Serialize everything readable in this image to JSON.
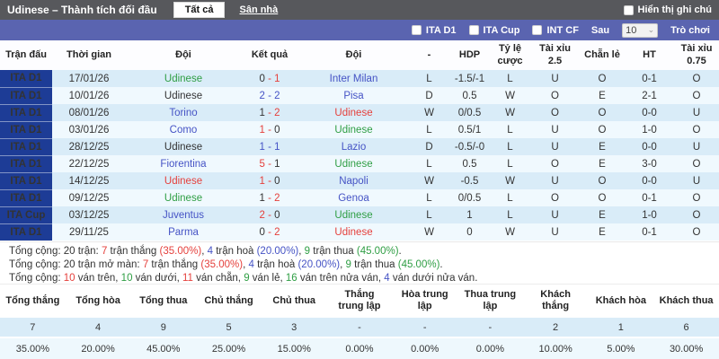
{
  "colors": {
    "navy_badge": "#1d3c96",
    "red": "#e5403c",
    "green": "#2f9e44",
    "blue": "#4553c5",
    "titlebar_gray": "#57585c",
    "filterbar_indigo": "#5a64b0",
    "stripe_odd": "#d9ecf8",
    "stripe_even": "#f0f9fe"
  },
  "title_bar": {
    "title": "Udinese – Thành tích đối đầu",
    "tab_all": "Tất cả",
    "tab_home": "Sân nhà",
    "notes_label": "Hiển thị ghi chú"
  },
  "filter_bar": {
    "leagues": [
      {
        "label": "ITA D1"
      },
      {
        "label": "ITA Cup"
      },
      {
        "label": "INT CF"
      }
    ],
    "after_label": "Sau",
    "count_value": "10",
    "chevron_icon": "⌄",
    "games_label": "Trò chơi"
  },
  "match_table": {
    "headers": [
      "Trận đấu",
      "Thời gian",
      "Đội",
      "Kết quả",
      "Đội",
      "-",
      "HDP",
      "Tỷ lệ cược",
      "Tài xỉu 2.5",
      "Chẵn lẻ",
      "HT",
      "Tài xỉu 0.75"
    ],
    "rows": [
      {
        "league": "ITA D1",
        "date": "17/01/26",
        "home": "Udinese",
        "home_color": "green",
        "score_home": "0",
        "score_home_color": "dark",
        "score_away": "1",
        "score_away_color": "red",
        "score_dash_color": "red",
        "away": "Inter Milan",
        "away_color": "blue",
        "result": "L",
        "result_color": "green",
        "hdp": "-1.5/-1",
        "odds": "L",
        "odds_color": "green",
        "ou25": "U",
        "ou25_color": "green",
        "evenodd": "O",
        "evenodd_color": "green",
        "ht": "0-1",
        "ou075": "O",
        "ou075_color": "green"
      },
      {
        "league": "ITA D1",
        "date": "10/01/26",
        "home": "Udinese",
        "home_color": "dark",
        "score_home": "2",
        "score_home_color": "blue",
        "score_away": "2",
        "score_away_color": "blue",
        "score_dash_color": "blue",
        "away": "Pisa",
        "away_color": "blue",
        "result": "D",
        "result_color": "blue",
        "hdp": "0.5",
        "odds": "W",
        "odds_color": "red",
        "ou25": "O",
        "ou25_color": "red",
        "evenodd": "E",
        "evenodd_color": "red",
        "ht": "2-1",
        "ou075": "O",
        "ou075_color": "green"
      },
      {
        "league": "ITA D1",
        "date": "08/01/26",
        "home": "Torino",
        "home_color": "blue",
        "score_home": "1",
        "score_home_color": "dark",
        "score_away": "2",
        "score_away_color": "red",
        "score_dash_color": "red",
        "away": "Udinese",
        "away_color": "red",
        "result": "W",
        "result_color": "red",
        "hdp": "0/0.5",
        "odds": "W",
        "odds_color": "red",
        "ou25": "O",
        "ou25_color": "red",
        "evenodd": "O",
        "evenodd_color": "green",
        "ht": "0-0",
        "ou075": "U",
        "ou075_color": "blue"
      },
      {
        "league": "ITA D1",
        "date": "03/01/26",
        "home": "Como",
        "home_color": "blue",
        "score_home": "1",
        "score_home_color": "red",
        "score_away": "0",
        "score_away_color": "dark",
        "score_dash_color": "red",
        "away": "Udinese",
        "away_color": "green",
        "result": "L",
        "result_color": "green",
        "hdp": "0.5/1",
        "odds": "L",
        "odds_color": "green",
        "ou25": "U",
        "ou25_color": "green",
        "evenodd": "O",
        "evenodd_color": "green",
        "ht": "1-0",
        "ou075": "O",
        "ou075_color": "green"
      },
      {
        "league": "ITA D1",
        "date": "28/12/25",
        "home": "Udinese",
        "home_color": "dark",
        "score_home": "1",
        "score_home_color": "blue",
        "score_away": "1",
        "score_away_color": "blue",
        "score_dash_color": "blue",
        "away": "Lazio",
        "away_color": "blue",
        "result": "D",
        "result_color": "blue",
        "hdp": "-0.5/-0",
        "odds": "L",
        "odds_color": "green",
        "ou25": "U",
        "ou25_color": "green",
        "evenodd": "E",
        "evenodd_color": "red",
        "ht": "0-0",
        "ou075": "U",
        "ou075_color": "blue"
      },
      {
        "league": "ITA D1",
        "date": "22/12/25",
        "home": "Fiorentina",
        "home_color": "blue",
        "score_home": "5",
        "score_home_color": "red",
        "score_away": "1",
        "score_away_color": "dark",
        "score_dash_color": "red",
        "away": "Udinese",
        "away_color": "green",
        "result": "L",
        "result_color": "green",
        "hdp": "0.5",
        "odds": "L",
        "odds_color": "green",
        "ou25": "O",
        "ou25_color": "red",
        "evenodd": "E",
        "evenodd_color": "red",
        "ht": "3-0",
        "ou075": "O",
        "ou075_color": "green"
      },
      {
        "league": "ITA D1",
        "date": "14/12/25",
        "home": "Udinese",
        "home_color": "red",
        "score_home": "1",
        "score_home_color": "red",
        "score_away": "0",
        "score_away_color": "dark",
        "score_dash_color": "red",
        "away": "Napoli",
        "away_color": "blue",
        "result": "W",
        "result_color": "red",
        "hdp": "-0.5",
        "odds": "W",
        "odds_color": "red",
        "ou25": "U",
        "ou25_color": "green",
        "evenodd": "O",
        "evenodd_color": "green",
        "ht": "0-0",
        "ou075": "U",
        "ou075_color": "blue"
      },
      {
        "league": "ITA D1",
        "date": "09/12/25",
        "home": "Udinese",
        "home_color": "green",
        "score_home": "1",
        "score_home_color": "dark",
        "score_away": "2",
        "score_away_color": "red",
        "score_dash_color": "red",
        "away": "Genoa",
        "away_color": "blue",
        "result": "L",
        "result_color": "green",
        "hdp": "0/0.5",
        "odds": "L",
        "odds_color": "green",
        "ou25": "O",
        "ou25_color": "red",
        "evenodd": "O",
        "evenodd_color": "green",
        "ht": "0-1",
        "ou075": "O",
        "ou075_color": "green"
      },
      {
        "league": "ITA Cup",
        "date": "03/12/25",
        "home": "Juventus",
        "home_color": "blue",
        "score_home": "2",
        "score_home_color": "red",
        "score_away": "0",
        "score_away_color": "dark",
        "score_dash_color": "red",
        "away": "Udinese",
        "away_color": "green",
        "result": "L",
        "result_color": "green",
        "hdp": "1",
        "odds": "L",
        "odds_color": "green",
        "ou25": "U",
        "ou25_color": "green",
        "evenodd": "E",
        "evenodd_color": "red",
        "ht": "1-0",
        "ou075": "O",
        "ou075_color": "green"
      },
      {
        "league": "ITA D1",
        "date": "29/11/25",
        "home": "Parma",
        "home_color": "blue",
        "score_home": "0",
        "score_home_color": "dark",
        "score_away": "2",
        "score_away_color": "red",
        "score_dash_color": "red",
        "away": "Udinese",
        "away_color": "red",
        "result": "W",
        "result_color": "red",
        "hdp": "0",
        "odds": "W",
        "odds_color": "red",
        "ou25": "U",
        "ou25_color": "green",
        "evenodd": "E",
        "evenodd_color": "red",
        "ht": "0-1",
        "ou075": "O",
        "ou075_color": "green"
      }
    ]
  },
  "summary_lines": [
    [
      {
        "t": "Tổng cộng: 20 trận: ",
        "c": "dark"
      },
      {
        "t": "7",
        "c": "red"
      },
      {
        "t": " trận thắng ",
        "c": "dark"
      },
      {
        "t": "(35.00%)",
        "c": "red"
      },
      {
        "t": ", ",
        "c": "dark"
      },
      {
        "t": "4",
        "c": "blue"
      },
      {
        "t": " trận hoà ",
        "c": "dark"
      },
      {
        "t": "(20.00%)",
        "c": "blue"
      },
      {
        "t": ", ",
        "c": "dark"
      },
      {
        "t": "9",
        "c": "green"
      },
      {
        "t": " trận thua ",
        "c": "dark"
      },
      {
        "t": "(45.00%)",
        "c": "green"
      },
      {
        "t": ".",
        "c": "dark"
      }
    ],
    [
      {
        "t": "Tổng cộng: 20 trận mở màn: ",
        "c": "dark"
      },
      {
        "t": "7",
        "c": "red"
      },
      {
        "t": " trận thắng ",
        "c": "dark"
      },
      {
        "t": "(35.00%)",
        "c": "red"
      },
      {
        "t": ", ",
        "c": "dark"
      },
      {
        "t": "4",
        "c": "blue"
      },
      {
        "t": " trận hoà ",
        "c": "dark"
      },
      {
        "t": "(20.00%)",
        "c": "blue"
      },
      {
        "t": ", ",
        "c": "dark"
      },
      {
        "t": "9",
        "c": "green"
      },
      {
        "t": " trận thua ",
        "c": "dark"
      },
      {
        "t": "(45.00%)",
        "c": "green"
      },
      {
        "t": ".",
        "c": "dark"
      }
    ],
    [
      {
        "t": "Tổng cộng: ",
        "c": "dark"
      },
      {
        "t": "10",
        "c": "red"
      },
      {
        "t": " ván trên, ",
        "c": "dark"
      },
      {
        "t": "10",
        "c": "green"
      },
      {
        "t": " ván dưới, ",
        "c": "dark"
      },
      {
        "t": "11",
        "c": "red"
      },
      {
        "t": " ván chẵn, ",
        "c": "dark"
      },
      {
        "t": "9",
        "c": "green"
      },
      {
        "t": " ván lẻ, ",
        "c": "dark"
      },
      {
        "t": "16",
        "c": "green"
      },
      {
        "t": " ván trên nửa ván, ",
        "c": "dark"
      },
      {
        "t": "4",
        "c": "blue"
      },
      {
        "t": " ván dưới nửa ván.",
        "c": "dark"
      }
    ]
  ],
  "stats_table": {
    "headers": [
      "Tổng thắng",
      "Tổng hòa",
      "Tổng thua",
      "Chủ thắng",
      "Chủ thua",
      "Thắng trung lập",
      "Hòa trung lập",
      "Thua trung lập",
      "Khách thắng",
      "Khách hòa",
      "Khách thua"
    ],
    "counts": [
      "7",
      "4",
      "9",
      "5",
      "3",
      "-",
      "-",
      "-",
      "2",
      "1",
      "6"
    ],
    "percents": [
      "35.00%",
      "20.00%",
      "45.00%",
      "25.00%",
      "15.00%",
      "0.00%",
      "0.00%",
      "0.00%",
      "10.00%",
      "5.00%",
      "30.00%"
    ]
  }
}
